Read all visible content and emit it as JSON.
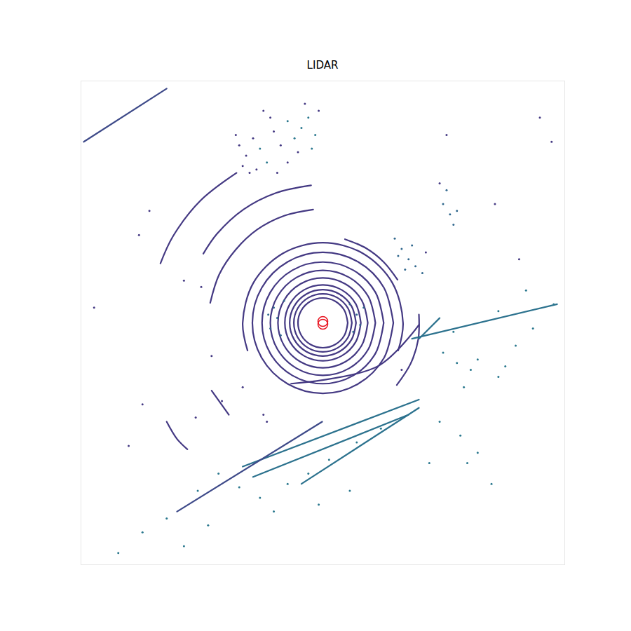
{
  "chart_data": {
    "type": "scatter",
    "title": "LIDAR",
    "xlim": [
      -35,
      35
    ],
    "ylim": [
      -35,
      35
    ],
    "tick_labels": false,
    "series": [
      {
        "type": "line",
        "color": "#443983",
        "x": [
          3.6,
          3.12,
          1.8,
          0,
          -1.8,
          -3.12,
          -3.6,
          -3.12,
          -1.8,
          0,
          1.8,
          3.12,
          3.6
        ],
        "y": [
          0,
          1.8,
          3.12,
          3.6,
          3.12,
          1.8,
          0,
          -1.8,
          -3.12,
          -3.6,
          -3.12,
          -1.8,
          0
        ]
      },
      {
        "type": "line",
        "color": "#443983",
        "x": [
          4.2,
          3.64,
          2.1,
          0,
          -2.1,
          -3.64,
          -4.2,
          -3.64,
          -2.1,
          0,
          2.1,
          3.64,
          4.2
        ],
        "y": [
          0,
          2.1,
          3.64,
          4.2,
          3.64,
          2.1,
          0,
          -2.1,
          -3.64,
          -4.2,
          -3.64,
          -2.1,
          0
        ]
      },
      {
        "type": "line",
        "color": "#443983",
        "x": [
          4.8,
          4.16,
          2.4,
          0,
          -2.4,
          -4.16,
          -4.8,
          -4.16,
          -2.4,
          0,
          2.4,
          4.16,
          4.8
        ],
        "y": [
          0,
          2.4,
          4.16,
          4.8,
          4.16,
          2.4,
          0,
          -2.4,
          -4.16,
          -4.8,
          -4.16,
          -2.4,
          0
        ]
      },
      {
        "type": "line",
        "color": "#443983",
        "x": [
          5.5,
          4.76,
          2.75,
          0,
          -2.75,
          -4.76,
          -5.5,
          -4.76,
          -2.75,
          0,
          2.75,
          4.76,
          5.5
        ],
        "y": [
          0,
          2.75,
          4.76,
          5.5,
          4.76,
          2.75,
          0,
          -2.75,
          -4.76,
          -5.5,
          -4.76,
          -2.75,
          0
        ]
      },
      {
        "type": "line",
        "color": "#443983",
        "x": [
          6.5,
          5.63,
          3.25,
          0,
          -3.25,
          -5.63,
          -6.5,
          -5.63,
          -3.25,
          0,
          3.25,
          5.63,
          6.5
        ],
        "y": [
          0,
          3.25,
          5.63,
          6.5,
          5.63,
          3.25,
          0,
          -3.25,
          -5.63,
          -6.5,
          -5.63,
          -3.25,
          0
        ]
      },
      {
        "type": "line",
        "color": "#443983",
        "x": [
          7.6,
          6.58,
          3.8,
          0,
          -3.8,
          -6.58,
          -7.6,
          -6.58,
          -3.8,
          0,
          3.8,
          6.58,
          7.6
        ],
        "y": [
          0,
          3.8,
          6.58,
          7.6,
          6.58,
          3.8,
          0,
          -3.8,
          -6.58,
          -7.6,
          -6.58,
          -3.8,
          0
        ]
      },
      {
        "type": "line",
        "color": "#443983",
        "x": [
          8.8,
          7.62,
          4.4,
          0,
          -4.4,
          -7.62,
          -8.8,
          -7.62,
          -4.4,
          0,
          4.4,
          7.62,
          8.8
        ],
        "y": [
          0,
          4.4,
          7.62,
          8.8,
          7.62,
          4.4,
          0,
          -4.4,
          -7.62,
          -8.8,
          -7.62,
          -4.4,
          0
        ]
      },
      {
        "type": "line",
        "color": "#443983",
        "x": [
          10.2,
          8.83,
          5.1,
          0,
          -5.1,
          -8.83,
          -10.2,
          -8.83,
          -5.1,
          0,
          5.1,
          8.83,
          10.2
        ],
        "y": [
          0,
          5.1,
          8.83,
          10.2,
          8.83,
          5.1,
          0,
          -5.1,
          -8.83,
          -10.2,
          -8.83,
          -5.1,
          0
        ]
      },
      {
        "type": "line",
        "color": "#443983",
        "x": [
          10.9,
          11.6,
          10.05,
          5.8,
          0,
          -5.8,
          -10.05,
          -11.6,
          -10.9
        ],
        "y": [
          -4.0,
          0,
          5.8,
          10.05,
          11.6,
          10.05,
          5.8,
          0,
          -4.0
        ]
      },
      {
        "type": "line",
        "color": "#443983",
        "x": [
          10.8,
          8.8,
          6.25,
          3.2
        ],
        "y": [
          6.25,
          8.8,
          10.8,
          12.1
        ]
      },
      {
        "type": "line",
        "color": "#443983",
        "x": [
          10.7,
          12.7,
          13.8,
          13.9
        ],
        "y": [
          -9.0,
          -5.9,
          -2.4,
          1.2
        ]
      },
      {
        "type": "line",
        "color": "#443983",
        "x": [
          -1.4,
          -5.6,
          -9.5,
          -12.6,
          -15.0,
          -16.3
        ],
        "y": [
          16.4,
          15.5,
          13.5,
          10.6,
          7.0,
          2.9
        ]
      },
      {
        "type": "line",
        "color": "#443983",
        "x": [
          -1.7,
          -6.8,
          -11.5,
          -15.3,
          -17.3
        ],
        "y": [
          19.9,
          18.8,
          16.4,
          12.9,
          10.0
        ]
      },
      {
        "type": "line",
        "color": "#443983",
        "x": [
          -12.5,
          -17.7,
          -21.7,
          -23.5
        ],
        "y": [
          21.7,
          17.7,
          12.5,
          8.6
        ]
      },
      {
        "type": "line",
        "color": "#443983",
        "x": [
          -4.6,
          7.9,
          13.9
        ],
        "y": [
          -8.8,
          -6.3,
          -0.3
        ]
      },
      {
        "type": "line",
        "color": "#443983",
        "x": [
          -22.6,
          -21.1,
          -19.6
        ],
        "y": [
          -14.3,
          -16.8,
          -18.3
        ]
      },
      {
        "type": "line",
        "color": "#443983",
        "x": [
          -16.1,
          -13.6
        ],
        "y": [
          -9.8,
          -13.3
        ]
      },
      {
        "type": "line",
        "color": "#3e4a89",
        "x": [
          -34.6,
          -22.6
        ],
        "y": [
          26.2,
          33.9
        ]
      },
      {
        "type": "line",
        "color": "#2c728e",
        "x": [
          -11.6,
          13.9
        ],
        "y": [
          -20.8,
          -11.1
        ]
      },
      {
        "type": "line",
        "color": "#2c728e",
        "x": [
          -3.1,
          13.9
        ],
        "y": [
          -23.3,
          -12.3
        ]
      },
      {
        "type": "line",
        "color": "#2c728e",
        "x": [
          -10.1,
          12.4
        ],
        "y": [
          -22.3,
          -13.3
        ]
      },
      {
        "type": "line",
        "color": "#2c728e",
        "x": [
          12.9,
          33.9
        ],
        "y": [
          -2.3,
          2.7
        ]
      },
      {
        "type": "line",
        "color": "#3e4a89",
        "x": [
          -21.1,
          -0.1
        ],
        "y": [
          -27.3,
          -14.3
        ]
      },
      {
        "type": "line",
        "color": "#2c728e",
        "x": [
          13.9,
          16.9
        ],
        "y": [
          -2.3,
          0.7
        ]
      },
      {
        "type": "scatter",
        "color": "#443983",
        "x": [
          -12.1,
          -11.1,
          -10.1,
          -7.1,
          -6.1,
          -3.6,
          -9.6,
          -11.6,
          -7.6,
          -8.6,
          -2.6,
          -5.1,
          -6.6,
          -10.6,
          -12.6,
          -0.6
        ],
        "y": [
          25.7,
          24.2,
          26.7,
          27.7,
          25.7,
          24.7,
          22.2,
          22.7,
          29.7,
          30.7,
          31.7,
          23.2,
          21.7,
          21.7,
          27.2,
          30.7
        ]
      },
      {
        "type": "scatter",
        "color": "#2a788e",
        "x": [
          -2.1,
          -3.1,
          -1.1,
          -4.1,
          -5.1,
          -9.1,
          -8.1,
          -1.6
        ],
        "y": [
          29.7,
          28.2,
          27.2,
          26.7,
          29.2,
          25.2,
          23.2,
          25.2
        ]
      },
      {
        "type": "scatter",
        "color": "#31688e",
        "x": [
          10.4,
          11.4,
          12.4,
          13.4,
          14.4,
          11.9,
          10.9,
          12.9,
          17.4,
          18.4,
          19.4,
          17.9,
          18.9,
          -7.1,
          -6.6,
          -7.6,
          -6.1,
          -7.9,
          -5.6,
          3.9,
          4.9,
          5.4,
          4.4,
          5.9
        ],
        "y": [
          12.2,
          10.7,
          9.2,
          8.2,
          7.2,
          7.7,
          9.7,
          11.2,
          17.2,
          15.7,
          16.2,
          19.2,
          14.2,
          2.2,
          0.7,
          -0.8,
          -1.8,
          1.2,
          3.2,
          2.7,
          1.2,
          -0.3,
          -1.3,
          2.2
        ]
      },
      {
        "type": "scatter",
        "color": "#443983",
        "x": [
          -14.6,
          -18.4,
          -8.6,
          -20.1,
          -26.1,
          -28.1,
          -33.1,
          -25.1,
          -26.6,
          -17.6,
          -16.1,
          -11.6,
          -8.1,
          17.9,
          24.9,
          28.4,
          33.1,
          31.4,
          16.9,
          14.9,
          11.4
        ],
        "y": [
          -11.3,
          -13.7,
          -13.3,
          6.1,
          -11.8,
          -17.8,
          2.2,
          16.2,
          12.7,
          5.2,
          -4.8,
          -9.3,
          -14.3,
          27.2,
          17.2,
          9.2,
          26.2,
          29.7,
          20.2,
          10.2,
          -6.8
        ]
      },
      {
        "type": "scatter",
        "color": "#2a788e",
        "x": [
          17.4,
          19.4,
          21.4,
          22.4,
          25.4,
          26.4,
          20.4,
          16.9,
          19.9,
          22.4,
          24.4,
          20.9,
          15.4,
          27.9,
          30.4,
          33.4,
          29.4,
          25.4,
          18.9,
          -15.1,
          -12.1,
          -9.1,
          -5.1,
          -2.1,
          -18.1,
          -22.6,
          -26.1,
          -29.6,
          -20.1,
          -16.6,
          -7.1,
          0.9,
          4.9,
          8.4,
          -0.6,
          3.9
        ],
        "y": [
          -4.3,
          -5.8,
          -6.8,
          -5.3,
          -7.8,
          -6.3,
          -9.3,
          -14.3,
          -16.3,
          -18.8,
          -23.3,
          -20.3,
          -20.3,
          -3.3,
          -0.8,
          2.7,
          4.7,
          1.7,
          -1.3,
          -21.8,
          -23.8,
          -25.3,
          -23.3,
          -21.8,
          -24.3,
          -28.3,
          -30.3,
          -33.3,
          -32.3,
          -29.3,
          -27.3,
          -19.8,
          -17.3,
          -15.3,
          -26.3,
          -24.3
        ]
      },
      {
        "type": "scatter",
        "color": "#e8131f",
        "marker": "ring",
        "x": [
          0,
          0
        ],
        "y": [
          0.2,
          -0.2
        ]
      }
    ]
  }
}
